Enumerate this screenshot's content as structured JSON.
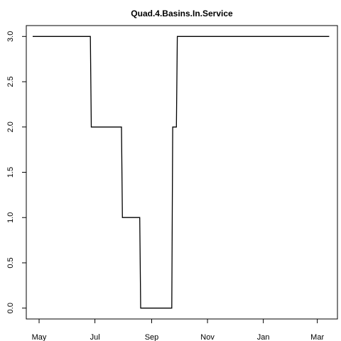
{
  "chart_data": {
    "type": "line",
    "title": "Quad.4.Basins.In.Service",
    "xlabel": "",
    "ylabel": "",
    "step": true,
    "ylim": [
      -0.12,
      3.12
    ],
    "xlim": [
      "Apr 17",
      "Mar 23"
    ],
    "x_ticks": [
      "May",
      "Jul",
      "Sep",
      "Nov",
      "Jan",
      "Mar"
    ],
    "y_ticks": [
      "0.0",
      "0.5",
      "1.0",
      "1.5",
      "2.0",
      "2.5",
      "3.0"
    ],
    "grid": false,
    "series": [
      {
        "x": [
          "Apr 24",
          "Jun 26",
          "Jun 27",
          "Jul 30",
          "Jul 31",
          "Aug 19",
          "Aug 20",
          "Sep 23",
          "Sep 24",
          "Sep 28",
          "Sep 29",
          "Mar 14"
        ],
        "y": [
          3,
          3,
          2,
          2,
          1,
          1,
          0,
          0,
          2,
          2,
          3,
          3
        ]
      }
    ]
  }
}
